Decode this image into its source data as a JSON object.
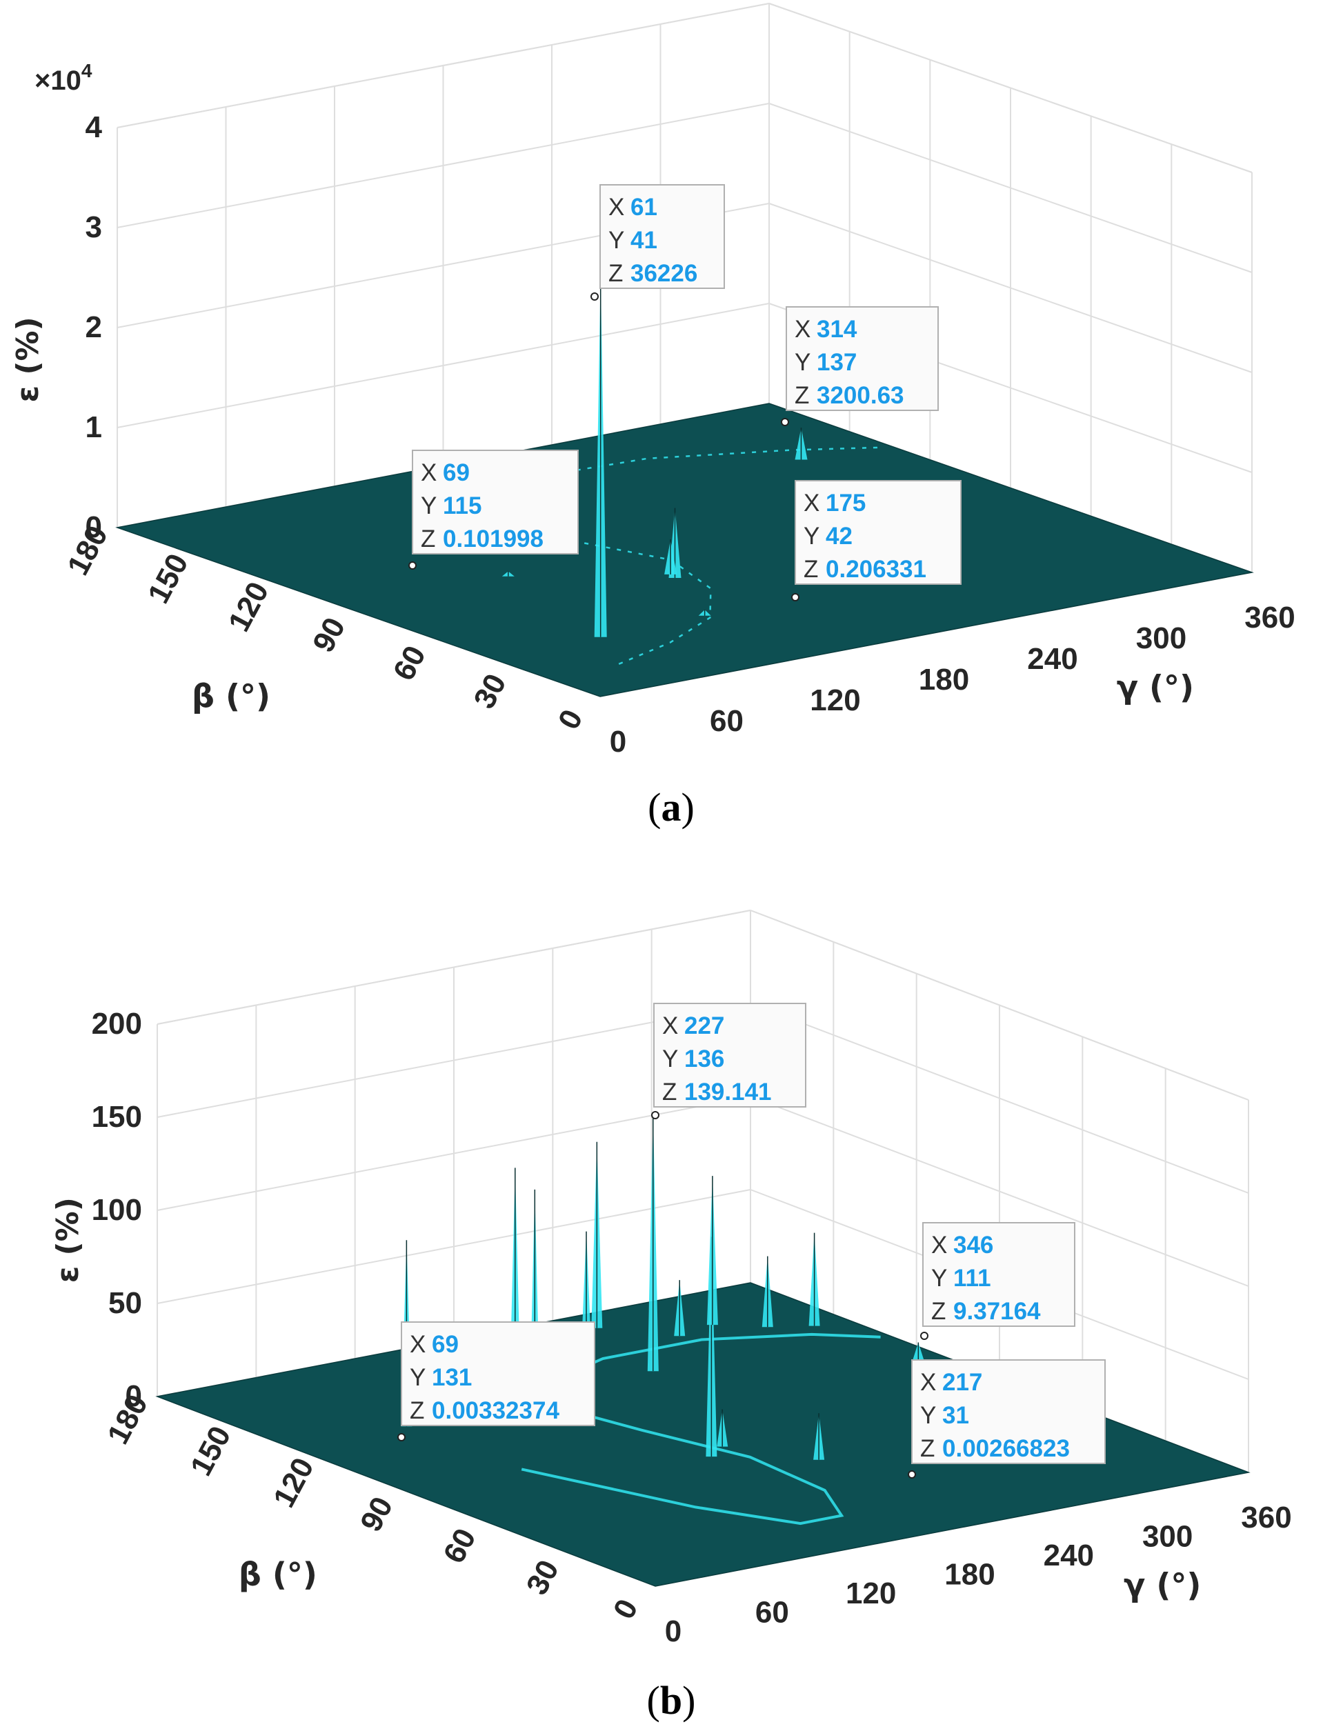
{
  "chart_data": [
    {
      "type": "surface",
      "panel_label": "a",
      "zlabel": "ε (%)",
      "xlabel": "γ (°)",
      "ylabel": "β (°)",
      "zlim": [
        0,
        40000
      ],
      "zticks": [
        "0",
        "1",
        "2",
        "3",
        "4"
      ],
      "zexponent_prefix": "×10",
      "zexponent": "4",
      "xticks": [
        "0",
        "60",
        "120",
        "180",
        "240",
        "300",
        "360"
      ],
      "yticks": [
        "0",
        "30",
        "60",
        "90",
        "120",
        "150",
        "180"
      ],
      "xlim": [
        0,
        360
      ],
      "ylim": [
        0,
        180
      ],
      "surface_color": "#0d4f52",
      "peak_color": "#33e6f2",
      "datatips": [
        {
          "X": "61",
          "Y": "41",
          "Z": "36226"
        },
        {
          "X": "314",
          "Y": "137",
          "Z": "3200.63"
        },
        {
          "X": "69",
          "Y": "115",
          "Z": "0.101998"
        },
        {
          "X": "175",
          "Y": "42",
          "Z": "0.206331"
        }
      ]
    },
    {
      "type": "surface",
      "panel_label": "b",
      "zlabel": "ε (%)",
      "xlabel": "γ (°)",
      "ylabel": "β (°)",
      "zlim": [
        0,
        200
      ],
      "zticks": [
        "0",
        "50",
        "100",
        "150",
        "200"
      ],
      "xticks": [
        "0",
        "60",
        "120",
        "180",
        "240",
        "300",
        "360"
      ],
      "yticks": [
        "0",
        "30",
        "60",
        "90",
        "120",
        "150",
        "180"
      ],
      "xlim": [
        0,
        360
      ],
      "ylim": [
        0,
        180
      ],
      "surface_color": "#0d4f52",
      "peak_color": "#33e6f2",
      "datatips": [
        {
          "X": "227",
          "Y": "136",
          "Z": "139.141"
        },
        {
          "X": "346",
          "Y": "111",
          "Z": "9.37164"
        },
        {
          "X": "69",
          "Y": "131",
          "Z": "0.00332374"
        },
        {
          "X": "217",
          "Y": "31",
          "Z": "0.00266823"
        }
      ]
    }
  ]
}
